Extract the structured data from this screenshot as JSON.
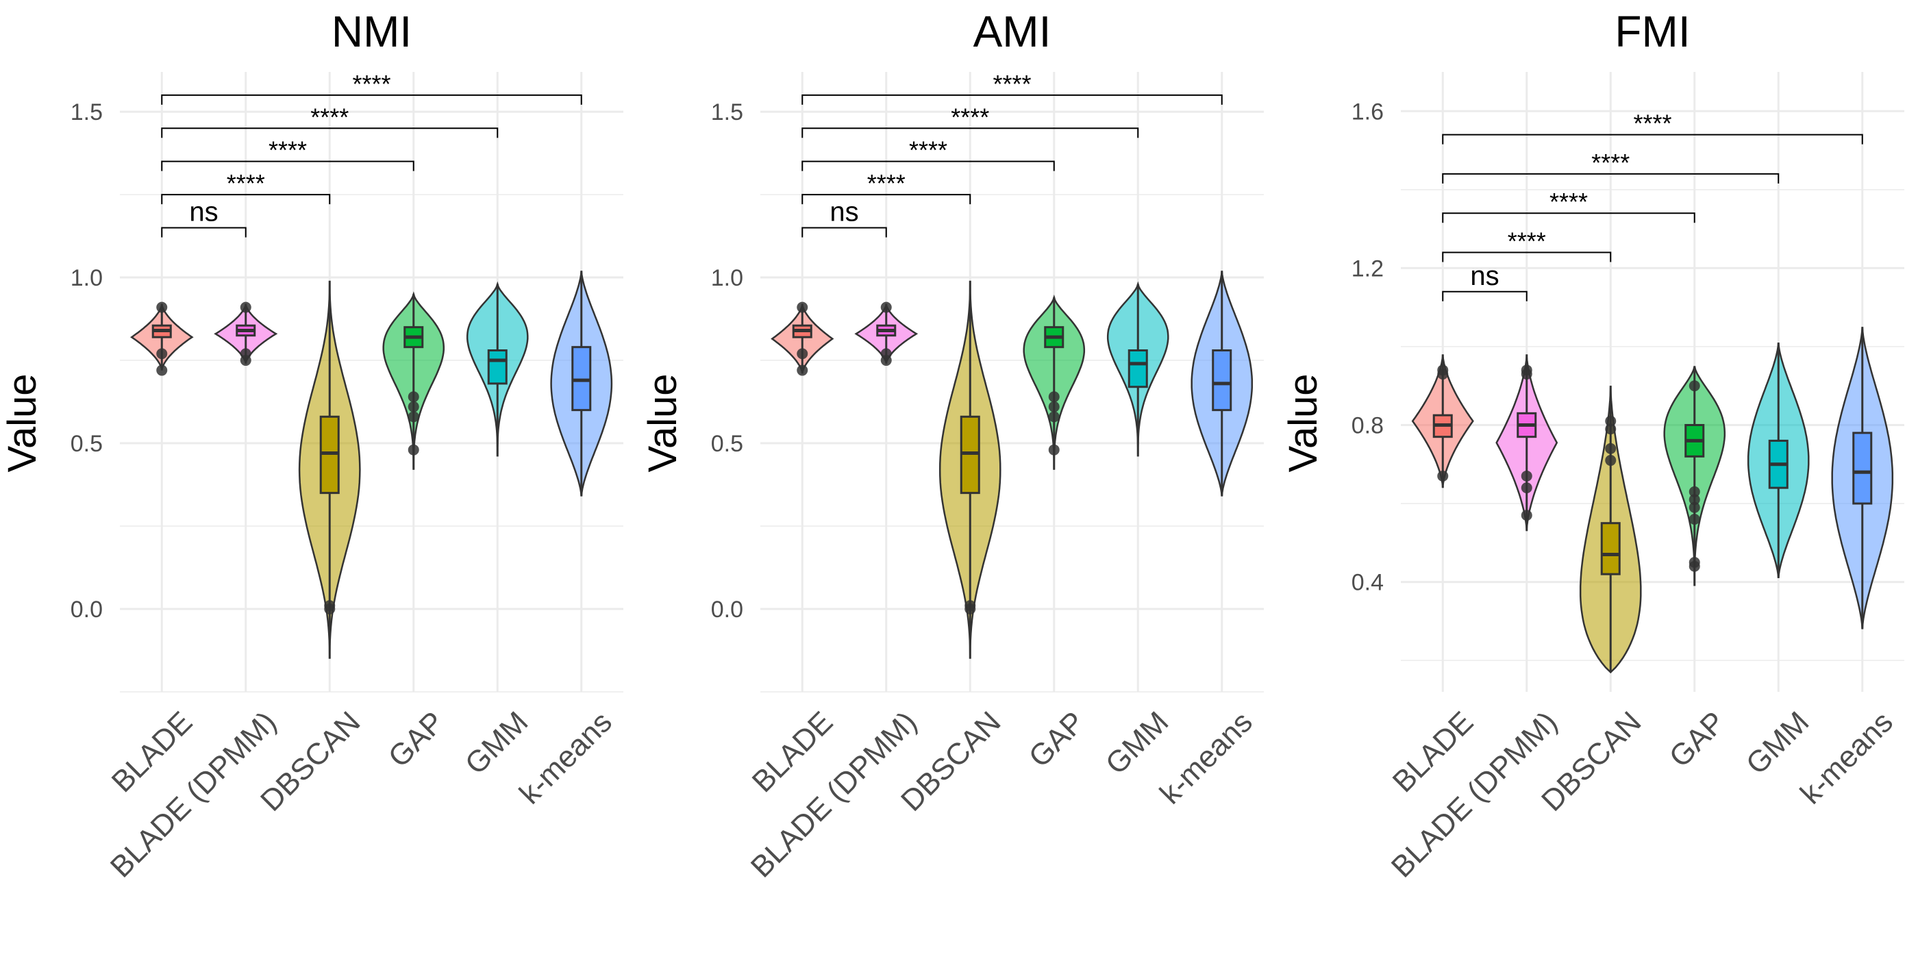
{
  "chart_data": [
    {
      "type": "violin",
      "title": "NMI",
      "ylabel": "Value",
      "xlabel": "",
      "ylim": [
        -0.25,
        1.62
      ],
      "yticks": [
        0.0,
        0.5,
        1.0,
        1.5
      ],
      "ytick_labels": [
        "0.0",
        "0.5",
        "1.0",
        "1.5"
      ],
      "grid": true,
      "categories": [
        "BLADE",
        "BLADE (DPMM)",
        "DBSCAN",
        "GAP",
        "GMM",
        "k-means"
      ],
      "series": [
        {
          "category": "BLADE",
          "color": "#F8766D",
          "min": 0.72,
          "q1": 0.82,
          "median": 0.84,
          "q3": 0.855,
          "max": 0.92,
          "shape": "diamond",
          "outliers": [
            0.72,
            0.77,
            0.91
          ]
        },
        {
          "category": "BLADE (DPMM)",
          "color": "#F564E3",
          "min": 0.74,
          "q1": 0.825,
          "median": 0.84,
          "q3": 0.855,
          "max": 0.92,
          "shape": "diamond",
          "outliers": [
            0.75,
            0.77,
            0.91
          ]
        },
        {
          "category": "DBSCAN",
          "color": "#B79F00",
          "min": -0.15,
          "q1": 0.35,
          "median": 0.47,
          "q3": 0.58,
          "max": 0.99,
          "shape": "spindle",
          "outliers": [
            0.0,
            0.01
          ]
        },
        {
          "category": "GAP",
          "color": "#00BA38",
          "min": 0.42,
          "q1": 0.79,
          "median": 0.82,
          "q3": 0.85,
          "max": 0.95,
          "shape": "top",
          "outliers": [
            0.48,
            0.58,
            0.61,
            0.64
          ]
        },
        {
          "category": "GMM",
          "color": "#00BFC4",
          "min": 0.46,
          "q1": 0.68,
          "median": 0.75,
          "q3": 0.78,
          "max": 0.98,
          "shape": "top",
          "outliers": []
        },
        {
          "category": "k-means",
          "color": "#619CFF",
          "min": 0.34,
          "q1": 0.6,
          "median": 0.69,
          "q3": 0.79,
          "max": 1.02,
          "shape": "center",
          "outliers": []
        }
      ],
      "comparisons": [
        {
          "from": "BLADE",
          "to": "BLADE (DPMM)",
          "label": "ns",
          "y": 1.15
        },
        {
          "from": "BLADE",
          "to": "DBSCAN",
          "label": "****",
          "y": 1.25
        },
        {
          "from": "BLADE",
          "to": "GAP",
          "label": "****",
          "y": 1.35
        },
        {
          "from": "BLADE",
          "to": "GMM",
          "label": "****",
          "y": 1.45
        },
        {
          "from": "BLADE",
          "to": "k-means",
          "label": "****",
          "y": 1.55
        }
      ]
    },
    {
      "type": "violin",
      "title": "AMI",
      "ylabel": "Value",
      "xlabel": "",
      "ylim": [
        -0.25,
        1.62
      ],
      "yticks": [
        0.0,
        0.5,
        1.0,
        1.5
      ],
      "ytick_labels": [
        "0.0",
        "0.5",
        "1.0",
        "1.5"
      ],
      "grid": true,
      "categories": [
        "BLADE",
        "BLADE (DPMM)",
        "DBSCAN",
        "GAP",
        "GMM",
        "k-means"
      ],
      "series": [
        {
          "category": "BLADE",
          "color": "#F8766D",
          "min": 0.71,
          "q1": 0.82,
          "median": 0.84,
          "q3": 0.855,
          "max": 0.92,
          "shape": "diamond",
          "outliers": [
            0.72,
            0.77,
            0.91
          ]
        },
        {
          "category": "BLADE (DPMM)",
          "color": "#F564E3",
          "min": 0.74,
          "q1": 0.825,
          "median": 0.84,
          "q3": 0.855,
          "max": 0.92,
          "shape": "diamond",
          "outliers": [
            0.75,
            0.77,
            0.91
          ]
        },
        {
          "category": "DBSCAN",
          "color": "#B79F00",
          "min": -0.15,
          "q1": 0.35,
          "median": 0.47,
          "q3": 0.58,
          "max": 0.99,
          "shape": "spindle",
          "outliers": [
            0.0,
            0.01
          ]
        },
        {
          "category": "GAP",
          "color": "#00BA38",
          "min": 0.42,
          "q1": 0.79,
          "median": 0.82,
          "q3": 0.85,
          "max": 0.94,
          "shape": "top",
          "outliers": [
            0.48,
            0.58,
            0.61,
            0.64
          ]
        },
        {
          "category": "GMM",
          "color": "#00BFC4",
          "min": 0.46,
          "q1": 0.67,
          "median": 0.74,
          "q3": 0.78,
          "max": 0.98,
          "shape": "top",
          "outliers": []
        },
        {
          "category": "k-means",
          "color": "#619CFF",
          "min": 0.34,
          "q1": 0.6,
          "median": 0.68,
          "q3": 0.78,
          "max": 1.02,
          "shape": "center",
          "outliers": []
        }
      ],
      "comparisons": [
        {
          "from": "BLADE",
          "to": "BLADE (DPMM)",
          "label": "ns",
          "y": 1.15
        },
        {
          "from": "BLADE",
          "to": "DBSCAN",
          "label": "****",
          "y": 1.25
        },
        {
          "from": "BLADE",
          "to": "GAP",
          "label": "****",
          "y": 1.35
        },
        {
          "from": "BLADE",
          "to": "GMM",
          "label": "****",
          "y": 1.45
        },
        {
          "from": "BLADE",
          "to": "k-means",
          "label": "****",
          "y": 1.55
        }
      ]
    },
    {
      "type": "violin",
      "title": "FMI",
      "ylabel": "Value",
      "xlabel": "",
      "ylim": [
        0.12,
        1.7
      ],
      "yticks": [
        0.4,
        0.8,
        1.2,
        1.6
      ],
      "ytick_labels": [
        "0.4",
        "0.8",
        "1.2",
        "1.6"
      ],
      "grid": true,
      "categories": [
        "BLADE",
        "BLADE (DPMM)",
        "DBSCAN",
        "GAP",
        "GMM",
        "k-means"
      ],
      "series": [
        {
          "category": "BLADE",
          "color": "#F8766D",
          "min": 0.64,
          "q1": 0.77,
          "median": 0.8,
          "q3": 0.825,
          "max": 0.98,
          "shape": "diamond",
          "outliers": [
            0.67,
            0.93,
            0.94
          ]
        },
        {
          "category": "BLADE (DPMM)",
          "color": "#F564E3",
          "min": 0.53,
          "q1": 0.77,
          "median": 0.8,
          "q3": 0.83,
          "max": 0.98,
          "shape": "diamond",
          "outliers": [
            0.57,
            0.64,
            0.67,
            0.93,
            0.94
          ]
        },
        {
          "category": "DBSCAN",
          "color": "#B79F00",
          "min": 0.17,
          "q1": 0.42,
          "median": 0.47,
          "q3": 0.55,
          "max": 0.9,
          "shape": "bottom",
          "outliers": [
            0.71,
            0.74,
            0.79,
            0.81
          ]
        },
        {
          "category": "GAP",
          "color": "#00BA38",
          "min": 0.39,
          "q1": 0.72,
          "median": 0.76,
          "q3": 0.8,
          "max": 0.95,
          "shape": "top",
          "outliers": [
            0.44,
            0.45,
            0.56,
            0.59,
            0.61,
            0.63,
            0.9
          ]
        },
        {
          "category": "GMM",
          "color": "#00BFC4",
          "min": 0.41,
          "q1": 0.64,
          "median": 0.7,
          "q3": 0.76,
          "max": 1.01,
          "shape": "center",
          "outliers": []
        },
        {
          "category": "k-means",
          "color": "#619CFF",
          "min": 0.28,
          "q1": 0.6,
          "median": 0.68,
          "q3": 0.78,
          "max": 1.05,
          "shape": "center",
          "outliers": []
        }
      ],
      "comparisons": [
        {
          "from": "BLADE",
          "to": "BLADE (DPMM)",
          "label": "ns",
          "y": 1.14
        },
        {
          "from": "BLADE",
          "to": "DBSCAN",
          "label": "****",
          "y": 1.24
        },
        {
          "from": "BLADE",
          "to": "GAP",
          "label": "****",
          "y": 1.34
        },
        {
          "from": "BLADE",
          "to": "GMM",
          "label": "****",
          "y": 1.44
        },
        {
          "from": "BLADE",
          "to": "k-means",
          "label": "****",
          "y": 1.54
        }
      ]
    }
  ],
  "style": {
    "grid_color": "#EBEBEB",
    "text_color": "#4D4D4D",
    "title_color": "#000000",
    "outline_color": "#333333"
  }
}
